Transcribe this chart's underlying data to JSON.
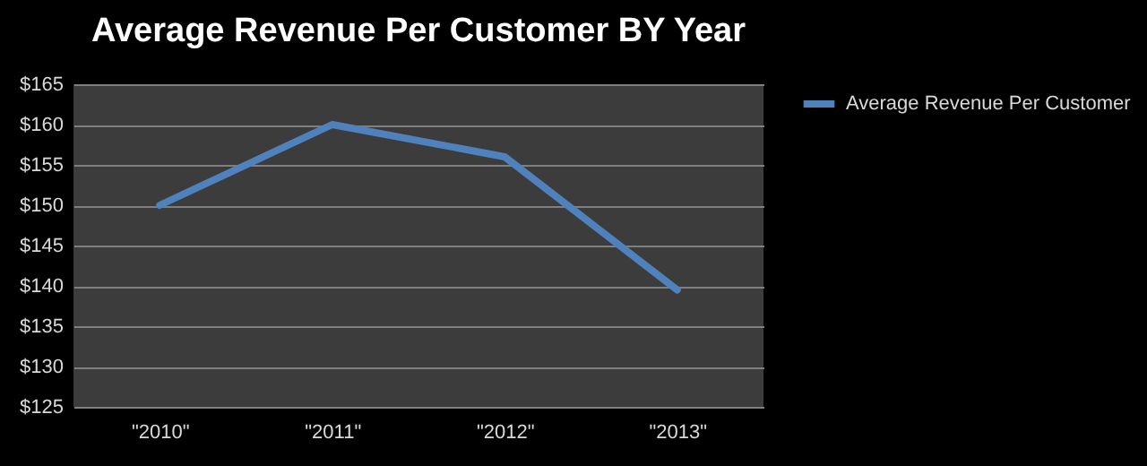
{
  "chart_data": {
    "type": "line",
    "title": "Average Revenue Per Customer BY Year",
    "categories": [
      "\"2010\"",
      "\"2011\"",
      "\"2012\"",
      "\"2013\""
    ],
    "series": [
      {
        "name": "Average Revenue Per Customer",
        "color": "#4f81bd",
        "values": [
          150,
          160,
          156,
          139.5
        ]
      }
    ],
    "ylim": [
      125,
      165
    ],
    "yticks": [
      {
        "value": 125,
        "label": "$125"
      },
      {
        "value": 130,
        "label": "$130"
      },
      {
        "value": 135,
        "label": "$135"
      },
      {
        "value": 140,
        "label": "$140"
      },
      {
        "value": 145,
        "label": "$145"
      },
      {
        "value": 150,
        "label": "$150"
      },
      {
        "value": 155,
        "label": "$155"
      },
      {
        "value": 160,
        "label": "$160"
      },
      {
        "value": 165,
        "label": "$165"
      }
    ],
    "grid": "y",
    "legend": "right",
    "marker": "none",
    "line_style": "solid"
  }
}
